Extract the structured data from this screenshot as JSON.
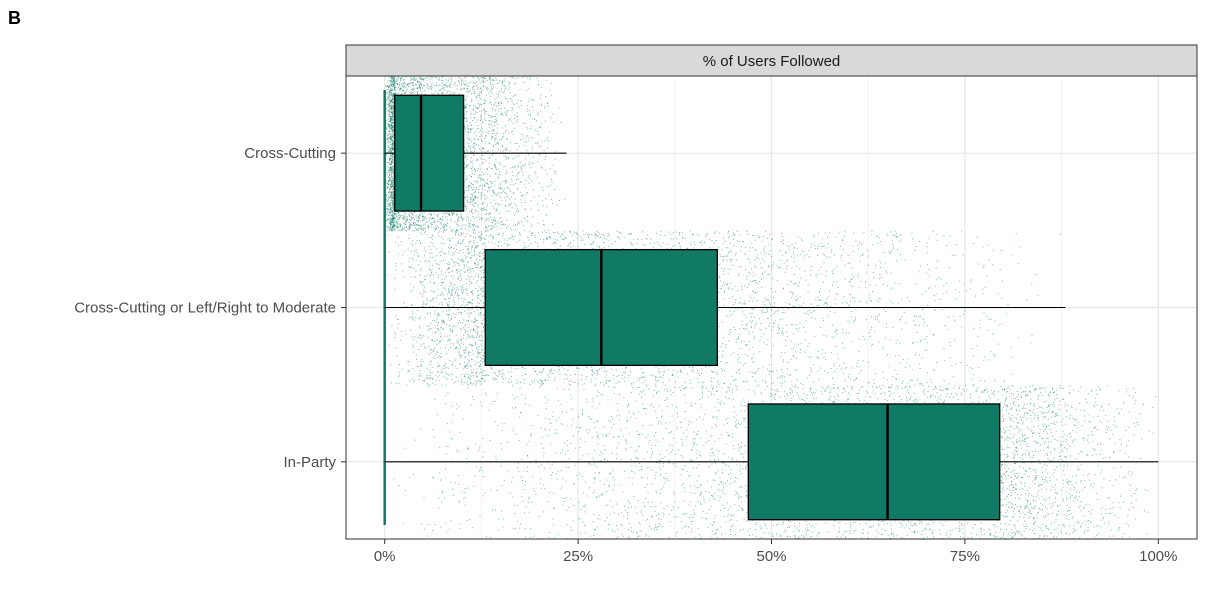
{
  "panel_label": "B",
  "chart_data": {
    "type": "box",
    "title": "",
    "facet_label": "% of Users Followed",
    "xlabel": "",
    "ylabel": "",
    "xlim": [
      -0.05,
      1.05
    ],
    "x_ticks": [
      0,
      0.25,
      0.5,
      0.75,
      1.0
    ],
    "x_tick_labels": [
      "0%",
      "25%",
      "50%",
      "75%",
      "100%"
    ],
    "grid": true,
    "fill_color": "#117a65",
    "point_color": "#117a65",
    "categories": [
      "Cross-Cutting",
      "Cross-Cutting or Left/Right to Moderate",
      "In-Party"
    ],
    "boxes": [
      {
        "category": "Cross-Cutting",
        "whisker_low": 0.0,
        "q1": 0.013,
        "median": 0.047,
        "q3": 0.102,
        "whisker_high": 0.235
      },
      {
        "category": "Cross-Cutting or Left/Right to Moderate",
        "whisker_low": 0.0,
        "q1": 0.13,
        "median": 0.28,
        "q3": 0.43,
        "whisker_high": 0.88
      },
      {
        "category": "In-Party",
        "whisker_low": 0.0,
        "q1": 0.47,
        "median": 0.65,
        "q3": 0.795,
        "whisker_high": 1.0
      }
    ]
  }
}
